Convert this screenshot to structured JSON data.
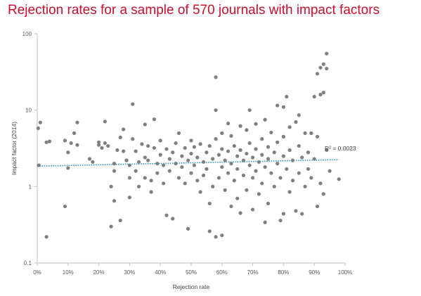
{
  "title": "Rejection rates for a sample of 570 journals with impact factors",
  "chart_data": {
    "type": "scatter",
    "title": "Rejection rates for a sample of 570 journals with impact factors",
    "xlabel": "Rejection rate",
    "ylabel": "Impact factor  (2014)",
    "xlim": [
      0,
      1
    ],
    "ylim": [
      0.1,
      100
    ],
    "yscale": "log",
    "x_ticks": [
      0,
      0.1,
      0.2,
      0.3,
      0.4,
      0.5,
      0.6,
      0.7,
      0.8,
      0.9,
      1.0
    ],
    "x_tick_labels": [
      "0%",
      "10%",
      "20%",
      "30%",
      "40%",
      "50%",
      "60%",
      "70%",
      "80%",
      "90%",
      "100%"
    ],
    "y_ticks": [
      0.1,
      1,
      10,
      100
    ],
    "y_tick_labels": [
      "0.1",
      "1",
      "10",
      "100"
    ],
    "grid": false,
    "point_color": "#7f7f7f",
    "trendline": {
      "label": "R² = 0.0023",
      "color": "#2e9bc6",
      "style": "dotted",
      "x": [
        0,
        0.98
      ],
      "y": [
        1.85,
        2.25
      ]
    },
    "series": [
      {
        "points": [
          [
            0.003,
            5.8
          ],
          [
            0.01,
            6.9
          ],
          [
            0.005,
            1.9
          ],
          [
            0.03,
            3.8
          ],
          [
            0.04,
            3.9
          ],
          [
            0.03,
            0.22
          ],
          [
            0.09,
            0.55
          ],
          [
            0.1,
            1.75
          ],
          [
            0.1,
            2.8
          ],
          [
            0.09,
            4.0
          ],
          [
            0.11,
            3.7
          ],
          [
            0.12,
            5.0
          ],
          [
            0.13,
            6.9
          ],
          [
            0.13,
            3.5
          ],
          [
            0.17,
            2.3
          ],
          [
            0.18,
            2.1
          ],
          [
            0.2,
            3.5
          ],
          [
            0.2,
            3.8
          ],
          [
            0.21,
            3.2
          ],
          [
            0.22,
            7.1
          ],
          [
            0.22,
            3.7
          ],
          [
            0.23,
            3.4
          ],
          [
            0.24,
            1.0
          ],
          [
            0.24,
            0.3
          ],
          [
            0.25,
            2.0
          ],
          [
            0.25,
            1.6
          ],
          [
            0.25,
            0.65
          ],
          [
            0.26,
            3.0
          ],
          [
            0.27,
            4.4
          ],
          [
            0.27,
            0.36
          ],
          [
            0.28,
            5.6
          ],
          [
            0.28,
            2.9
          ],
          [
            0.29,
            2.2
          ],
          [
            0.3,
            1.9
          ],
          [
            0.3,
            1.3
          ],
          [
            0.3,
            0.72
          ],
          [
            0.31,
            12.0
          ],
          [
            0.31,
            4.2
          ],
          [
            0.32,
            2.9
          ],
          [
            0.32,
            1.6
          ],
          [
            0.33,
            2.1
          ],
          [
            0.33,
            1.0
          ],
          [
            0.34,
            3.6
          ],
          [
            0.35,
            6.5
          ],
          [
            0.35,
            2.4
          ],
          [
            0.35,
            1.3
          ],
          [
            0.36,
            3.4
          ],
          [
            0.36,
            2.2
          ],
          [
            0.37,
            1.2
          ],
          [
            0.37,
            0.85
          ],
          [
            0.38,
            7.6
          ],
          [
            0.38,
            3.2
          ],
          [
            0.39,
            2.0
          ],
          [
            0.39,
            1.5
          ],
          [
            0.4,
            4.0
          ],
          [
            0.4,
            2.6
          ],
          [
            0.41,
            1.9
          ],
          [
            0.41,
            1.1
          ],
          [
            0.42,
            0.42
          ],
          [
            0.42,
            3.1
          ],
          [
            0.43,
            2.3
          ],
          [
            0.43,
            1.6
          ],
          [
            0.44,
            0.38
          ],
          [
            0.44,
            2.8
          ],
          [
            0.45,
            3.7
          ],
          [
            0.45,
            2.0
          ],
          [
            0.46,
            1.3
          ],
          [
            0.46,
            5.0
          ],
          [
            0.47,
            2.5
          ],
          [
            0.47,
            1.8
          ],
          [
            0.48,
            3.2
          ],
          [
            0.48,
            1.1
          ],
          [
            0.49,
            2.2
          ],
          [
            0.49,
            0.28
          ],
          [
            0.5,
            4.0
          ],
          [
            0.5,
            2.7
          ],
          [
            0.5,
            1.5
          ],
          [
            0.51,
            3.3
          ],
          [
            0.51,
            1.9
          ],
          [
            0.52,
            2.4
          ],
          [
            0.52,
            1.2
          ],
          [
            0.53,
            0.85
          ],
          [
            0.53,
            3.6
          ],
          [
            0.54,
            2.1
          ],
          [
            0.54,
            1.4
          ],
          [
            0.55,
            2.8
          ],
          [
            0.55,
            1.7
          ],
          [
            0.56,
            0.26
          ],
          [
            0.56,
            0.6
          ],
          [
            0.56,
            3.4
          ],
          [
            0.57,
            2.3
          ],
          [
            0.57,
            1.0
          ],
          [
            0.58,
            27.0
          ],
          [
            0.58,
            10.0
          ],
          [
            0.58,
            4.2
          ],
          [
            0.58,
            0.22
          ],
          [
            0.59,
            2.6
          ],
          [
            0.59,
            1.3
          ],
          [
            0.6,
            5.0
          ],
          [
            0.6,
            3.1
          ],
          [
            0.6,
            1.8
          ],
          [
            0.6,
            0.23
          ],
          [
            0.61,
            2.2
          ],
          [
            0.61,
            0.9
          ],
          [
            0.62,
            6.7
          ],
          [
            0.62,
            2.9
          ],
          [
            0.62,
            1.5
          ],
          [
            0.63,
            4.6
          ],
          [
            0.63,
            2.0
          ],
          [
            0.63,
            0.55
          ],
          [
            0.64,
            3.4
          ],
          [
            0.64,
            1.2
          ],
          [
            0.65,
            2.5
          ],
          [
            0.65,
            1.7
          ],
          [
            0.65,
            0.7
          ],
          [
            0.66,
            6.2
          ],
          [
            0.66,
            3.0
          ],
          [
            0.66,
            0.45
          ],
          [
            0.67,
            2.2
          ],
          [
            0.67,
            1.4
          ],
          [
            0.68,
            5.5
          ],
          [
            0.68,
            2.7
          ],
          [
            0.68,
            0.9
          ],
          [
            0.69,
            10.0
          ],
          [
            0.69,
            3.7
          ],
          [
            0.69,
            1.9
          ],
          [
            0.7,
            2.4
          ],
          [
            0.7,
            1.3
          ],
          [
            0.7,
            0.5
          ],
          [
            0.71,
            6.6
          ],
          [
            0.71,
            3.1
          ],
          [
            0.71,
            1.6
          ],
          [
            0.72,
            2.1
          ],
          [
            0.72,
            0.8
          ],
          [
            0.73,
            4.2
          ],
          [
            0.73,
            2.6
          ],
          [
            0.73,
            1.1
          ],
          [
            0.74,
            7.5
          ],
          [
            0.74,
            1.8
          ],
          [
            0.74,
            0.34
          ],
          [
            0.75,
            3.3
          ],
          [
            0.75,
            2.3
          ],
          [
            0.75,
            0.6
          ],
          [
            0.76,
            5.1
          ],
          [
            0.76,
            1.5
          ],
          [
            0.77,
            2.8
          ],
          [
            0.77,
            1.0
          ],
          [
            0.78,
            11.5
          ],
          [
            0.78,
            3.8
          ],
          [
            0.78,
            2.0
          ],
          [
            0.79,
            0.36
          ],
          [
            0.79,
            1.3
          ],
          [
            0.8,
            11.0
          ],
          [
            0.8,
            4.5
          ],
          [
            0.8,
            2.5
          ],
          [
            0.8,
            0.44
          ],
          [
            0.81,
            15.0
          ],
          [
            0.81,
            1.7
          ],
          [
            0.82,
            6.0
          ],
          [
            0.82,
            3.0
          ],
          [
            0.82,
            0.85
          ],
          [
            0.83,
            2.2
          ],
          [
            0.83,
            1.2
          ],
          [
            0.84,
            7.0
          ],
          [
            0.84,
            0.48
          ],
          [
            0.85,
            8.6
          ],
          [
            0.85,
            3.4
          ],
          [
            0.85,
            1.5
          ],
          [
            0.86,
            2.4
          ],
          [
            0.86,
            0.44
          ],
          [
            0.87,
            5.0
          ],
          [
            0.87,
            1.0
          ],
          [
            0.88,
            2.8
          ],
          [
            0.88,
            1.7
          ],
          [
            0.89,
            5.0
          ],
          [
            0.89,
            1.3
          ],
          [
            0.9,
            15.0
          ],
          [
            0.9,
            2.3
          ],
          [
            0.91,
            30.0
          ],
          [
            0.91,
            4.5
          ],
          [
            0.91,
            0.55
          ],
          [
            0.92,
            36.0
          ],
          [
            0.92,
            16.0
          ],
          [
            0.92,
            1.1
          ],
          [
            0.93,
            40.0
          ],
          [
            0.93,
            17.0
          ],
          [
            0.93,
            0.8
          ],
          [
            0.94,
            55.0
          ],
          [
            0.94,
            35.0
          ],
          [
            0.94,
            3.0
          ],
          [
            0.95,
            1.6
          ],
          [
            0.98,
            1.25
          ]
        ]
      }
    ]
  }
}
